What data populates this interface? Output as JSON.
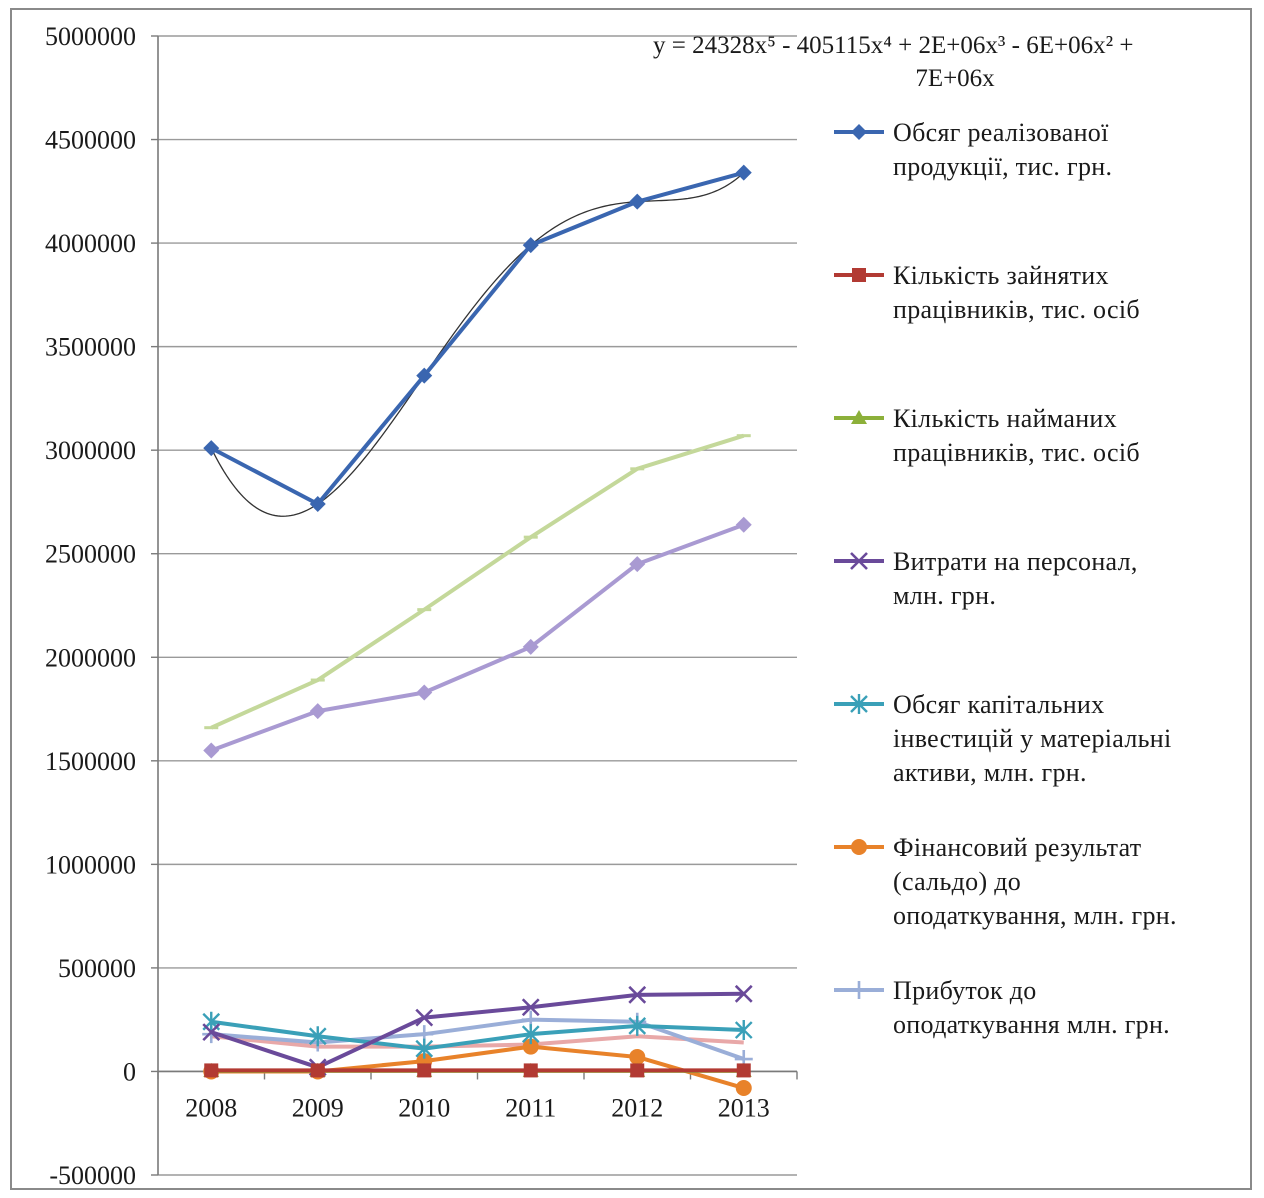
{
  "chart_data": {
    "type": "line",
    "title": "",
    "xlabel": "",
    "ylabel": "",
    "categories": [
      "2008",
      "2009",
      "2010",
      "2011",
      "2012",
      "2013"
    ],
    "ylim": [
      -500000,
      5000000
    ],
    "yticks": [
      5000000,
      4500000,
      4000000,
      3500000,
      3000000,
      2500000,
      2000000,
      1500000,
      1000000,
      500000,
      0,
      -500000
    ],
    "ytick_labels": [
      "5000000",
      "4500000",
      "4000000",
      "3500000",
      "3000000",
      "2500000",
      "2000000",
      "1500000",
      "1000000",
      "500000",
      "0",
      "-500000"
    ],
    "grid": true,
    "legend_position": "right",
    "trendline": {
      "equation_lines": [
        "y = 24328x⁵ - 405115x⁴ + 2E+06x³ - 6E+06x² +",
        "7E+06x"
      ],
      "applies_to": "Обсяг реалізованої продукції, тис. грн.",
      "color": "#333333"
    },
    "series": [
      {
        "name": "Обсяг реалізованої продукції, тис. грн.",
        "legend_lines": [
          "Обсяг реалізованої",
          "продукції, тис. грн."
        ],
        "color": "#3a66b0",
        "marker": "diamond",
        "values": [
          3010000,
          2740000,
          3360000,
          3990000,
          4200000,
          4340000
        ]
      },
      {
        "name": "Кількість зайнятих працівників, тис. осіб",
        "legend_lines": [
          "Кількість зайнятих",
          "працівників, тис. осіб"
        ],
        "color": "#b23a33",
        "marker": "square",
        "values": [
          5000,
          5000,
          5000,
          5000,
          5000,
          5000
        ]
      },
      {
        "name": "Кількість найманих працівників, тис. осіб",
        "legend_lines": [
          "Кількість найманих",
          "працівників, тис. осіб"
        ],
        "color": "#8cb03a",
        "marker": "triangle",
        "values": [
          3000,
          3000,
          3000,
          3000,
          3000,
          3000
        ]
      },
      {
        "name": "Витрати на персонал, млн. грн.",
        "legend_lines": [
          "Витрати на персонал,",
          "млн. грн."
        ],
        "color": "#6a4a9a",
        "marker": "x",
        "values": [
          190000,
          20000,
          260000,
          310000,
          370000,
          375000
        ]
      },
      {
        "name": "Обсяг капітальних інвестицій у матеріальні активи, млн. грн.",
        "legend_lines": [
          "Обсяг капітальних",
          "інвестицій у матеріальні",
          "активи, млн. грн."
        ],
        "color": "#3aa0b8",
        "marker": "star",
        "values": [
          240000,
          170000,
          110000,
          180000,
          220000,
          200000
        ]
      },
      {
        "name": "Фінансовий результат (сальдо) до оподаткування, млн. грн.",
        "legend_lines": [
          "Фінансовий результат",
          "(сальдо) до",
          "оподаткування, млн. грн."
        ],
        "color": "#e8822a",
        "marker": "circle",
        "values": [
          0,
          0,
          50000,
          120000,
          70000,
          -80000
        ]
      },
      {
        "name": "Прибуток до оподаткування млн. грн.",
        "legend_lines": [
          "Прибуток до",
          "оподаткування млн. грн."
        ],
        "color": "#9aaed8",
        "marker": "plus",
        "values": [
          180000,
          140000,
          180000,
          250000,
          240000,
          60000
        ]
      }
    ],
    "unlabeled_series": [
      {
        "color": "#c4d89a",
        "marker": "dash",
        "values": [
          1660000,
          1890000,
          2230000,
          2580000,
          2910000,
          3070000
        ]
      },
      {
        "color": "#a99ad2",
        "marker": "diamond",
        "values": [
          1550000,
          1740000,
          1830000,
          2050000,
          2450000,
          2640000
        ]
      },
      {
        "color": "#e8a8a8",
        "marker": "none",
        "values": [
          170000,
          120000,
          120000,
          130000,
          170000,
          140000
        ]
      }
    ]
  }
}
